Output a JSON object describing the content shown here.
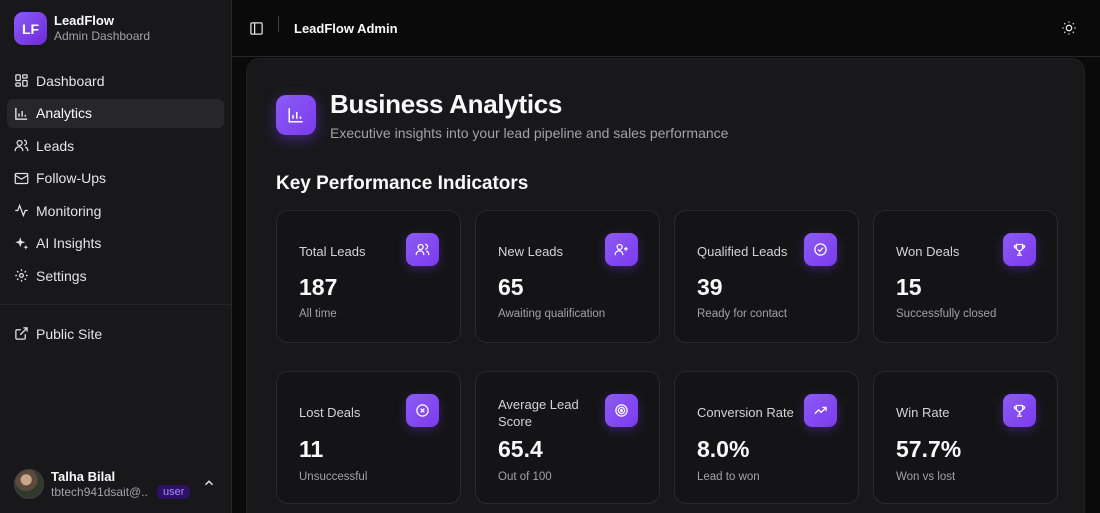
{
  "brand": {
    "logo": "LF",
    "name": "LeadFlow",
    "subtitle": "Admin Dashboard"
  },
  "sidebar": {
    "items": [
      {
        "label": "Dashboard",
        "icon": "dashboard-icon",
        "active": false
      },
      {
        "label": "Analytics",
        "icon": "analytics-icon",
        "active": true
      },
      {
        "label": "Leads",
        "icon": "users-icon",
        "active": false
      },
      {
        "label": "Follow-Ups",
        "icon": "mail-icon",
        "active": false
      },
      {
        "label": "Monitoring",
        "icon": "activity-icon",
        "active": false
      },
      {
        "label": "AI Insights",
        "icon": "sparkles-icon",
        "active": false
      },
      {
        "label": "Settings",
        "icon": "gear-icon",
        "active": false
      }
    ],
    "secondary": [
      {
        "label": "Public Site",
        "icon": "external-link-icon"
      }
    ]
  },
  "user": {
    "name": "Talha Bilal",
    "email": "tbtech941dsait@...",
    "role": "user"
  },
  "header": {
    "title": "LeadFlow Admin"
  },
  "page": {
    "title": "Business Analytics",
    "subtitle": "Executive insights into your lead pipeline and sales performance",
    "section_title": "Key Performance Indicators"
  },
  "kpis": [
    {
      "label": "Total Leads",
      "value": "187",
      "note": "All time",
      "icon": "users-icon"
    },
    {
      "label": "New Leads",
      "value": "65",
      "note": "Awaiting qualification",
      "icon": "user-plus-icon"
    },
    {
      "label": "Qualified Leads",
      "value": "39",
      "note": "Ready for contact",
      "icon": "check-circle-icon"
    },
    {
      "label": "Won Deals",
      "value": "15",
      "note": "Successfully closed",
      "icon": "trophy-icon"
    },
    {
      "label": "Lost Deals",
      "value": "11",
      "note": "Unsuccessful",
      "icon": "x-circle-icon"
    },
    {
      "label": "Average Lead Score",
      "value": "65.4",
      "note": "Out of 100",
      "icon": "target-icon"
    },
    {
      "label": "Conversion Rate",
      "value": "8.0%",
      "note": "Lead to won",
      "icon": "trending-up-icon"
    },
    {
      "label": "Win Rate",
      "value": "57.7%",
      "note": "Won vs lost",
      "icon": "trophy-icon"
    }
  ],
  "colors": {
    "accent": "#7c3aed",
    "background": "#0a0a0b",
    "panel": "#18181b"
  }
}
